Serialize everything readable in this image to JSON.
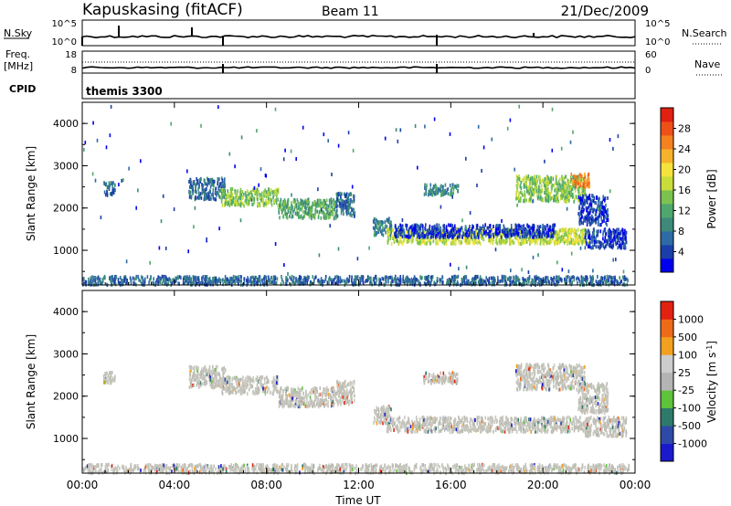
{
  "header": {
    "station": "Kapuskasing (fitACF)",
    "beam": "Beam 11",
    "date": "21/Dec/2009"
  },
  "top_panels": {
    "nsky_label": "N.Sky",
    "nsky_ticks": [
      "10^5",
      "10^0"
    ],
    "nsearch_label": "N.Search",
    "nsearch_ticks": [
      "10^5",
      "10^0"
    ],
    "freq_label_1": "Freq.",
    "freq_label_2": "[MHz]",
    "freq_ticks": [
      "18",
      "8"
    ],
    "nave_label": "Nave",
    "nave_ticks": [
      "60",
      "0"
    ],
    "cpid_label": "CPID",
    "cpid_value": "themis 3300"
  },
  "colorbars": {
    "power": {
      "label": "Power [dB]",
      "ticks": [
        "28",
        "24",
        "20",
        "16",
        "12",
        "8",
        "4"
      ],
      "colors": [
        "#0000ee",
        "#1b3fa8",
        "#2e6aa5",
        "#3d8a7a",
        "#4ea86e",
        "#7cc24e",
        "#c8dc3a",
        "#f5e23a",
        "#f7b22c",
        "#f5821f",
        "#ee5018",
        "#e02010"
      ]
    },
    "velocity": {
      "label": "Velocity [m s",
      "label_sup": "-1",
      "label_end": "]",
      "ticks": [
        "1000",
        "500",
        "100",
        "25",
        "-25",
        "-100",
        "-500",
        "-1000"
      ],
      "colors": [
        "#1a1acc",
        "#2e4aa8",
        "#2e7a6a",
        "#5ec23a",
        "#b4b4b4",
        "#cccccc",
        "#f2a020",
        "#ef6a18",
        "#e22210"
      ]
    }
  },
  "chart_data": [
    {
      "type": "heatmap",
      "title": "Power",
      "xlabel": "",
      "ylabel": "Slant Range [km]",
      "xlim": [
        0,
        24
      ],
      "ylim": [
        180,
        4500
      ],
      "x_ticks": [
        "00:00",
        "04:00",
        "08:00",
        "12:00",
        "16:00",
        "20:00",
        "00:00"
      ],
      "y_ticks": [
        "1000",
        "2000",
        "3000",
        "4000"
      ],
      "series": [
        {
          "t0": 0.9,
          "t1": 1.4,
          "r0": 2300,
          "r1": 2600,
          "level": 2
        },
        {
          "t0": 4.6,
          "t1": 6.2,
          "r0": 2200,
          "r1": 2700,
          "level": 2
        },
        {
          "t0": 6.0,
          "t1": 8.5,
          "r0": 2050,
          "r1": 2450,
          "level": 5
        },
        {
          "t0": 8.5,
          "t1": 11.0,
          "r0": 1750,
          "r1": 2200,
          "level": 4
        },
        {
          "t0": 11.0,
          "t1": 11.8,
          "r0": 1800,
          "r1": 2350,
          "level": 2
        },
        {
          "t0": 12.6,
          "t1": 13.4,
          "r0": 1350,
          "r1": 1750,
          "level": 3
        },
        {
          "t0": 13.2,
          "t1": 22.0,
          "r0": 1150,
          "r1": 1500,
          "level": 6
        },
        {
          "t0": 13.5,
          "t1": 20.5,
          "r0": 1300,
          "r1": 1600,
          "level": 1
        },
        {
          "t0": 14.8,
          "t1": 16.3,
          "r0": 2300,
          "r1": 2550,
          "level": 3
        },
        {
          "t0": 18.8,
          "t1": 21.8,
          "r0": 2150,
          "r1": 2750,
          "level": 5
        },
        {
          "t0": 21.2,
          "t1": 22.0,
          "r0": 2500,
          "r1": 2800,
          "level": 9
        },
        {
          "t0": 21.8,
          "t1": 23.6,
          "r0": 1050,
          "r1": 1500,
          "level": 1
        },
        {
          "t0": 21.5,
          "t1": 22.8,
          "r0": 1600,
          "r1": 2300,
          "level": 1
        },
        {
          "t0": 0.0,
          "t1": 23.7,
          "r0": 180,
          "r1": 380,
          "level": 2
        },
        {
          "t0": 0.0,
          "t1": 23.5,
          "r0": 400,
          "r1": 4400,
          "level": 2
        }
      ]
    },
    {
      "type": "heatmap",
      "title": "Velocity",
      "xlabel": "Time UT",
      "ylabel": "Slant Range [km]",
      "xlim": [
        0,
        24
      ],
      "ylim": [
        180,
        4500
      ],
      "x_ticks": [
        "00:00",
        "04:00",
        "08:00",
        "12:00",
        "16:00",
        "20:00",
        "00:00"
      ],
      "y_ticks": [
        "1000",
        "2000",
        "3000",
        "4000"
      ],
      "series": [
        {
          "t0": 0.9,
          "t1": 1.4,
          "r0": 2300,
          "r1": 2600,
          "level": 4
        },
        {
          "t0": 4.6,
          "t1": 6.2,
          "r0": 2200,
          "r1": 2700,
          "level": 4
        },
        {
          "t0": 6.0,
          "t1": 8.5,
          "r0": 2050,
          "r1": 2450,
          "level": 4
        },
        {
          "t0": 8.5,
          "t1": 11.0,
          "r0": 1750,
          "r1": 2200,
          "level": 4
        },
        {
          "t0": 11.0,
          "t1": 11.8,
          "r0": 1800,
          "r1": 2350,
          "level": 4
        },
        {
          "t0": 12.6,
          "t1": 13.4,
          "r0": 1350,
          "r1": 1750,
          "level": 4
        },
        {
          "t0": 13.2,
          "t1": 22.0,
          "r0": 1150,
          "r1": 1500,
          "level": 4
        },
        {
          "t0": 14.8,
          "t1": 16.3,
          "r0": 2300,
          "r1": 2550,
          "level": 4
        },
        {
          "t0": 18.8,
          "t1": 21.8,
          "r0": 2150,
          "r1": 2750,
          "level": 4
        },
        {
          "t0": 21.8,
          "t1": 23.6,
          "r0": 1050,
          "r1": 1500,
          "level": 4
        },
        {
          "t0": 21.5,
          "t1": 22.8,
          "r0": 1600,
          "r1": 2300,
          "level": 4
        },
        {
          "t0": 0.0,
          "t1": 23.7,
          "r0": 180,
          "r1": 380,
          "level": 4
        }
      ]
    }
  ]
}
